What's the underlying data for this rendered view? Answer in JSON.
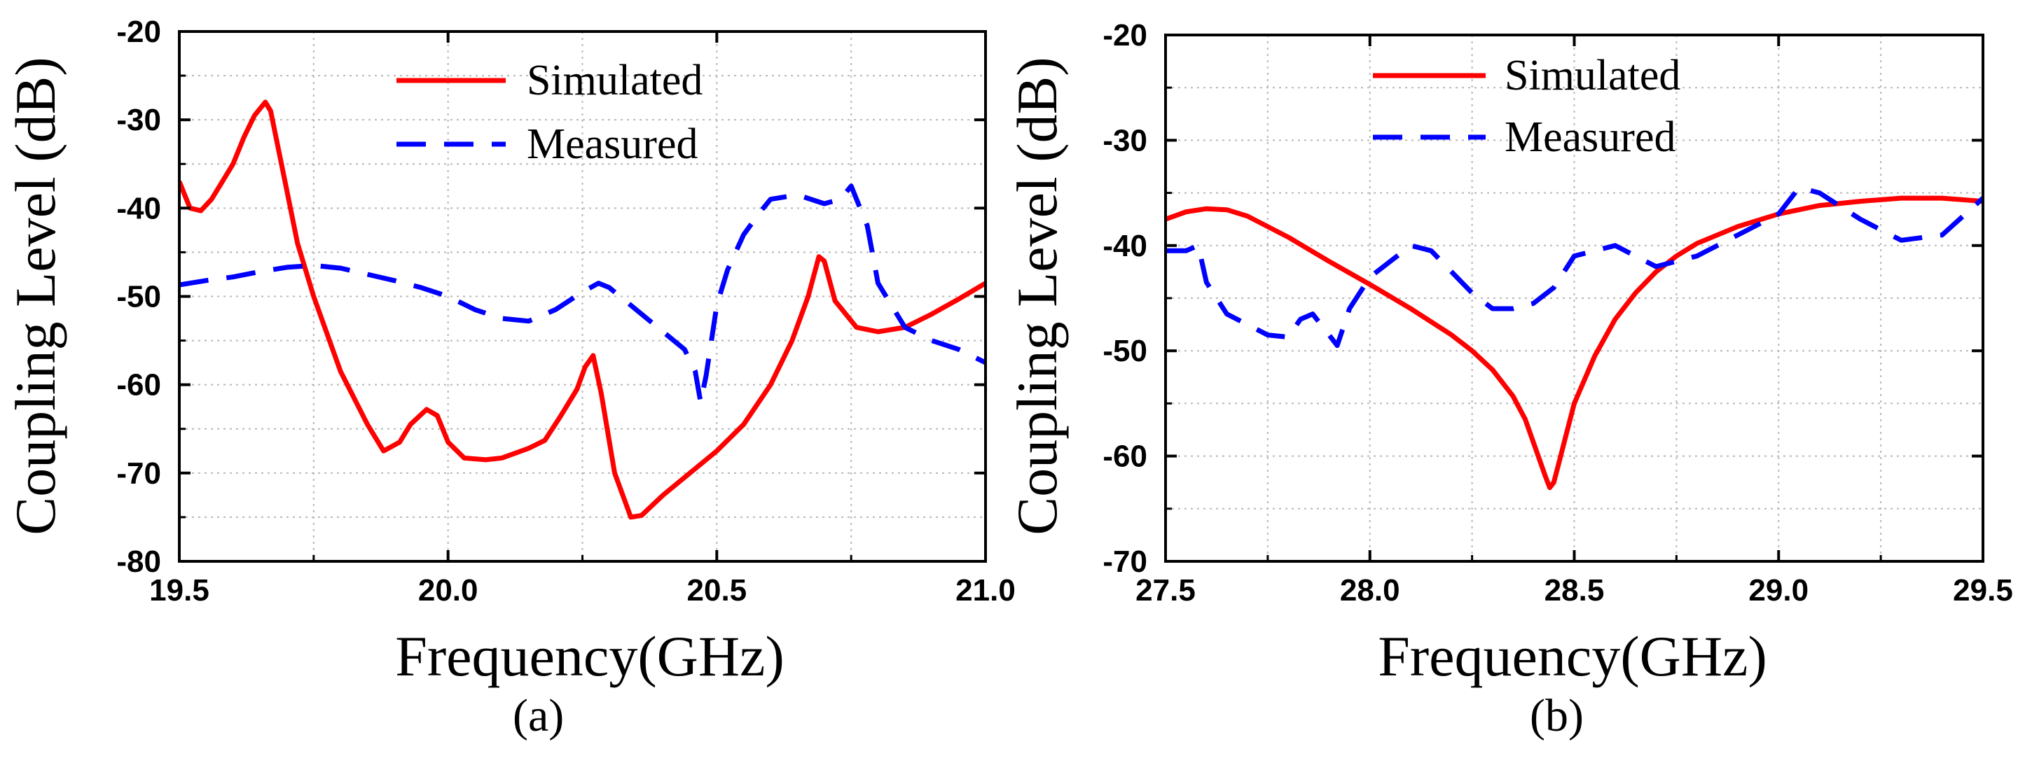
{
  "figure": {
    "captions": [
      "(a)",
      "(b)"
    ]
  },
  "chart_data": [
    {
      "type": "line",
      "panel": "(a)",
      "title": "",
      "xlabel": "Frequency(GHz)",
      "ylabel": "Coupling Level (dB)",
      "xlim": [
        19.5,
        21.0
      ],
      "ylim": [
        -80,
        -20
      ],
      "xticks": [
        19.5,
        20.0,
        20.5,
        21.0
      ],
      "xtick_labels": [
        "19.5",
        "20.0",
        "20.5",
        "21.0"
      ],
      "yticks": [
        -80,
        -70,
        -60,
        -50,
        -40,
        -30,
        -20
      ],
      "ytick_labels": [
        "-80",
        "-70",
        "-60",
        "-50",
        "-40",
        "-30",
        "-20"
      ],
      "grid": true,
      "legend_position": "top-center",
      "series": [
        {
          "name": "Simulated",
          "style": "solid",
          "color": "#ff0000",
          "x": [
            19.5,
            19.52,
            19.54,
            19.56,
            19.58,
            19.6,
            19.62,
            19.64,
            19.66,
            19.67,
            19.68,
            19.7,
            19.72,
            19.75,
            19.8,
            19.85,
            19.88,
            19.91,
            19.93,
            19.96,
            19.98,
            20.0,
            20.03,
            20.07,
            20.1,
            20.15,
            20.18,
            20.21,
            20.24,
            20.255,
            20.27,
            20.285,
            20.31,
            20.34,
            20.36,
            20.4,
            20.45,
            20.5,
            20.55,
            20.6,
            20.64,
            20.67,
            20.69,
            20.7,
            20.72,
            20.76,
            20.8,
            20.85,
            20.9,
            20.95,
            21.0
          ],
          "y": [
            -37,
            -40,
            -40.3,
            -39,
            -37,
            -35,
            -32,
            -29.5,
            -28,
            -29,
            -32,
            -38,
            -44,
            -50,
            -58.5,
            -64.5,
            -67.5,
            -66.5,
            -64.5,
            -62.8,
            -63.5,
            -66.5,
            -68.3,
            -68.5,
            -68.3,
            -67.2,
            -66.3,
            -63.5,
            -60.5,
            -58,
            -56.7,
            -61,
            -70,
            -75,
            -74.8,
            -72.5,
            -70,
            -67.5,
            -64.5,
            -60,
            -55,
            -50,
            -45.5,
            -46,
            -50.5,
            -53.5,
            -54,
            -53.5,
            -52,
            -50.3,
            -48.5
          ]
        },
        {
          "name": "Measured",
          "style": "dashed",
          "color": "#0000ff",
          "x": [
            19.5,
            19.55,
            19.6,
            19.65,
            19.7,
            19.75,
            19.8,
            19.85,
            19.9,
            19.95,
            20.0,
            20.05,
            20.1,
            20.15,
            20.2,
            20.25,
            20.28,
            20.3,
            20.35,
            20.4,
            20.44,
            20.46,
            20.47,
            20.48,
            20.49,
            20.5,
            20.52,
            20.55,
            20.58,
            20.6,
            20.65,
            20.7,
            20.73,
            20.75,
            20.78,
            20.8,
            20.85,
            20.9,
            20.95,
            21.0
          ],
          "y": [
            -48.7,
            -48.2,
            -47.8,
            -47.2,
            -46.7,
            -46.5,
            -46.8,
            -47.5,
            -48.2,
            -49,
            -50,
            -51.5,
            -52.5,
            -52.8,
            -51.5,
            -49.5,
            -48.5,
            -49,
            -51.5,
            -54,
            -56,
            -58.5,
            -62,
            -59,
            -55,
            -51,
            -47,
            -43,
            -40.5,
            -39,
            -38.5,
            -39.5,
            -39,
            -37.5,
            -42,
            -48.5,
            -53.5,
            -55,
            -56,
            -57.5
          ]
        }
      ]
    },
    {
      "type": "line",
      "panel": "(b)",
      "title": "",
      "xlabel": "Frequency(GHz)",
      "ylabel": "Coupling Level (dB)",
      "xlim": [
        27.5,
        29.5
      ],
      "ylim": [
        -70,
        -20
      ],
      "xticks": [
        27.5,
        28.0,
        28.5,
        29.0,
        29.5
      ],
      "xtick_labels": [
        "27.5",
        "28.0",
        "28.5",
        "29.0",
        "29.5"
      ],
      "yticks": [
        -70,
        -60,
        -50,
        -40,
        -30,
        -20
      ],
      "ytick_labels": [
        "-70",
        "-60",
        "-50",
        "-40",
        "-30",
        "-20"
      ],
      "grid": true,
      "legend_position": "top-center",
      "series": [
        {
          "name": "Simulated",
          "style": "solid",
          "color": "#ff0000",
          "x": [
            27.5,
            27.55,
            27.6,
            27.65,
            27.7,
            27.8,
            27.9,
            28.0,
            28.1,
            28.2,
            28.25,
            28.3,
            28.35,
            28.38,
            28.41,
            28.43,
            28.44,
            28.45,
            28.46,
            28.48,
            28.5,
            28.55,
            28.6,
            28.65,
            28.7,
            28.75,
            28.8,
            28.9,
            29.0,
            29.1,
            29.2,
            29.3,
            29.4,
            29.5
          ],
          "y": [
            -37.5,
            -36.8,
            -36.5,
            -36.6,
            -37.2,
            -39.2,
            -41.5,
            -43.7,
            -46,
            -48.5,
            -50,
            -51.8,
            -54.3,
            -56.5,
            -59.8,
            -62,
            -63,
            -62.5,
            -61,
            -58,
            -55,
            -50.5,
            -47,
            -44.5,
            -42.5,
            -41,
            -39.8,
            -38.2,
            -37,
            -36.2,
            -35.8,
            -35.5,
            -35.5,
            -35.8
          ]
        },
        {
          "name": "Measured",
          "style": "dashed",
          "color": "#0000ff",
          "x": [
            27.5,
            27.55,
            27.58,
            27.6,
            27.65,
            27.7,
            27.75,
            27.8,
            27.83,
            27.86,
            27.88,
            27.9,
            27.92,
            27.95,
            28.0,
            28.05,
            28.1,
            28.15,
            28.2,
            28.25,
            28.3,
            28.35,
            28.4,
            28.45,
            28.5,
            28.6,
            28.7,
            28.8,
            28.9,
            29.0,
            29.05,
            29.1,
            29.2,
            29.3,
            29.4,
            29.5
          ],
          "y": [
            -40.5,
            -40.5,
            -40,
            -43.5,
            -46.5,
            -47.5,
            -48.5,
            -48.7,
            -47,
            -46.5,
            -47.5,
            -48.5,
            -49.5,
            -46,
            -43,
            -41.5,
            -40,
            -40.5,
            -42.5,
            -44.5,
            -46,
            -46,
            -45.5,
            -44,
            -41,
            -40,
            -42,
            -41,
            -39,
            -37,
            -34.5,
            -35,
            -37.5,
            -39.5,
            -39,
            -35.5
          ]
        }
      ]
    }
  ]
}
